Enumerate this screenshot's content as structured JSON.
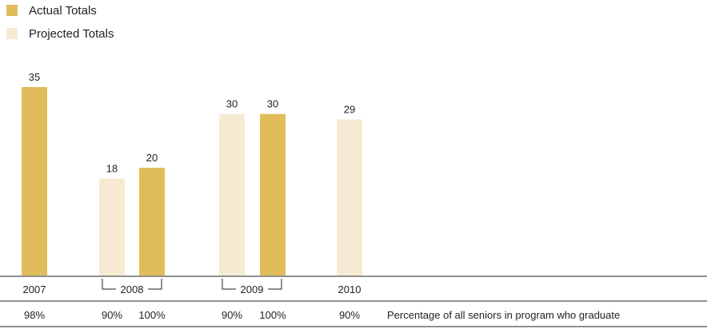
{
  "legend": [
    {
      "label": "Actual Totals",
      "color": "#e0bd5a"
    },
    {
      "label": "Projected Totals",
      "color": "#f7ead3"
    }
  ],
  "chart_data": {
    "type": "bar",
    "ylim": [
      0,
      35
    ],
    "grid": false,
    "legend_position": "top-left",
    "bars": [
      {
        "year": "2007",
        "series": "Actual Totals",
        "value": 35,
        "percent": "98%"
      },
      {
        "year": "2008",
        "series": "Projected Totals",
        "value": 18,
        "percent": "90%"
      },
      {
        "year": "2008",
        "series": "Actual Totals",
        "value": 20,
        "percent": "100%"
      },
      {
        "year": "2009",
        "series": "Projected Totals",
        "value": 30,
        "percent": "90%"
      },
      {
        "year": "2009",
        "series": "Actual Totals",
        "value": 30,
        "percent": "100%"
      },
      {
        "year": "2010",
        "series": "Projected Totals",
        "value": 29,
        "percent": "90%"
      }
    ],
    "years": [
      "2007",
      "2008",
      "2009",
      "2010"
    ],
    "percent_row_label": "Percentage of all seniors in program who graduate"
  }
}
